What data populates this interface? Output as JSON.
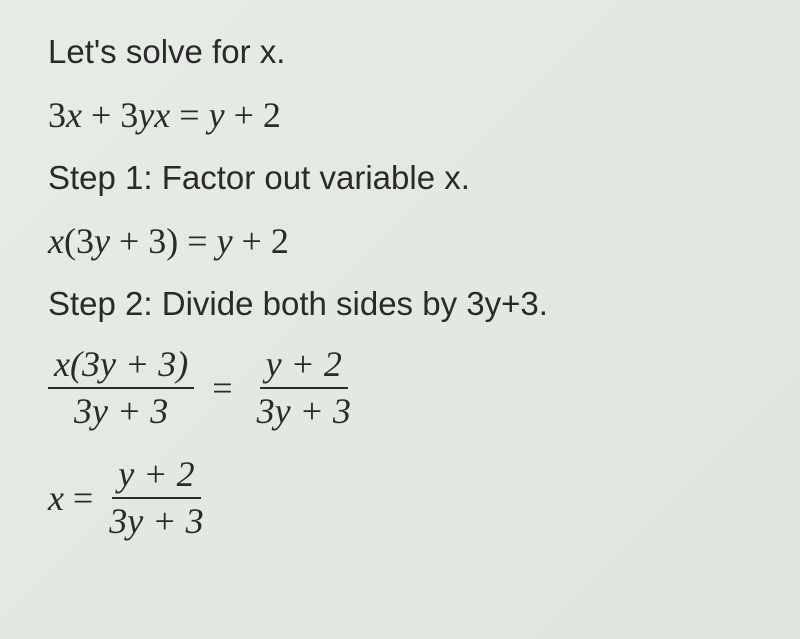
{
  "colors": {
    "text": "#2a2a2a",
    "background": "#e6eae4",
    "fraction_bar": "#2a2a2a"
  },
  "typography": {
    "prose_font": "Arial, Helvetica, sans-serif",
    "prose_size_pt": 25,
    "math_font": "Times New Roman, serif",
    "math_size_pt": 27,
    "math_style": "italic"
  },
  "intro": "Let's solve for x.",
  "equation": {
    "text": "3x + 3yx = y + 2"
  },
  "step1": {
    "label": "Step 1: Factor out variable x.",
    "math": "x(3y + 3) = y + 2"
  },
  "step2": {
    "label": "Step 2: Divide both sides by 3y+3.",
    "fraction_left": {
      "numerator": "x(3y + 3)",
      "denominator": "3y + 3"
    },
    "equals": "=",
    "fraction_right": {
      "numerator": "y + 2",
      "denominator": "3y + 3"
    }
  },
  "result": {
    "lhs": "x =",
    "fraction": {
      "numerator": "y + 2",
      "denominator": "3y + 3"
    }
  }
}
